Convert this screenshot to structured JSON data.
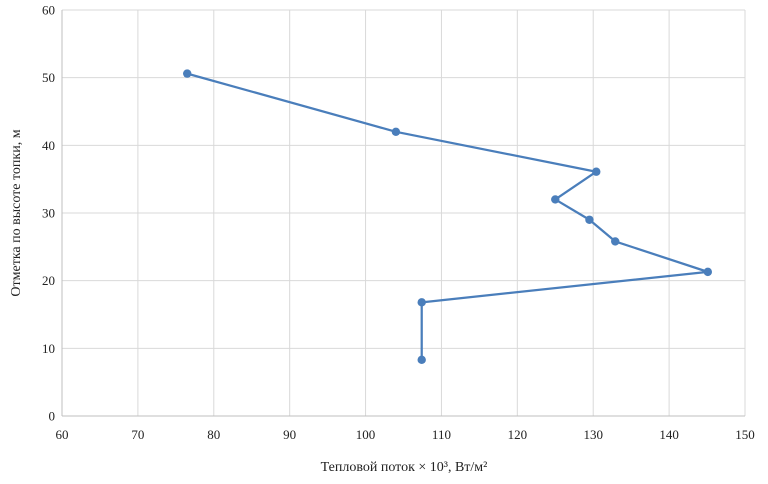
{
  "chart_data": {
    "type": "line",
    "title": "",
    "xlabel": "Тепловой поток × 10³, Вт/м²",
    "ylabel": "Отметка по высоте топки, м",
    "xlim": [
      60,
      150
    ],
    "ylim": [
      0,
      60
    ],
    "xticks": [
      60,
      70,
      80,
      90,
      100,
      110,
      120,
      130,
      140,
      150
    ],
    "yticks": [
      0,
      10,
      20,
      30,
      40,
      50,
      60
    ],
    "grid": true,
    "legend": "none",
    "color": "#4a7ebb",
    "series": [
      {
        "points": [
          {
            "x": 76.5,
            "y": 50.6
          },
          {
            "x": 104.0,
            "y": 42.0
          },
          {
            "x": 130.4,
            "y": 36.1
          },
          {
            "x": 125.0,
            "y": 32.0
          },
          {
            "x": 129.5,
            "y": 29.0
          },
          {
            "x": 132.9,
            "y": 25.8
          },
          {
            "x": 145.1,
            "y": 21.3
          },
          {
            "x": 107.4,
            "y": 16.8
          },
          {
            "x": 107.4,
            "y": 8.3
          }
        ]
      }
    ]
  }
}
